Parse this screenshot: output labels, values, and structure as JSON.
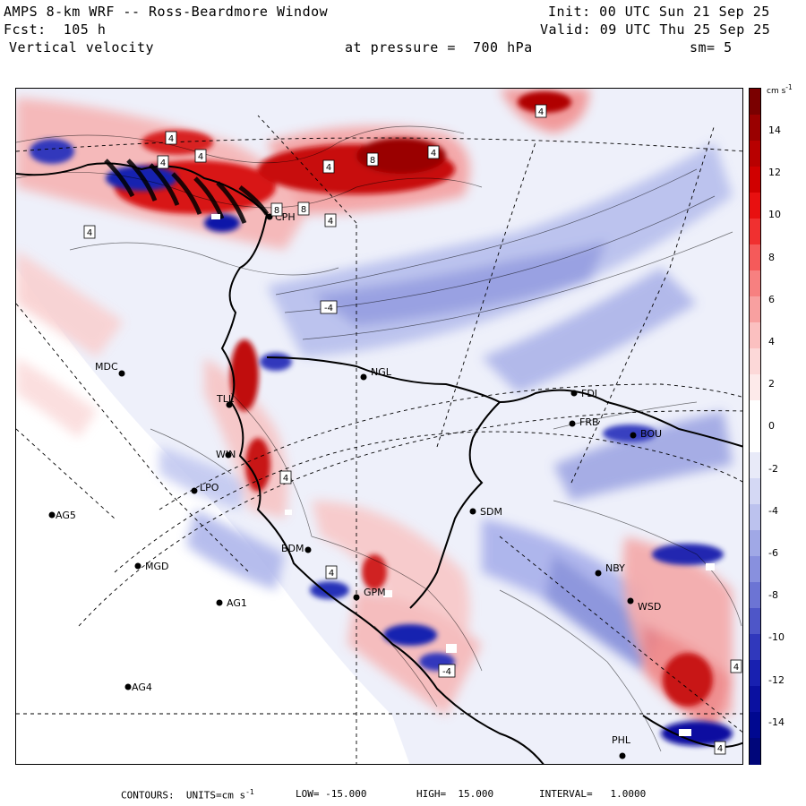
{
  "header": {
    "title": "AMPS 8-km WRF -- Ross-Beardmore Window",
    "init": "Init: 00 UTC Sun 21 Sep 25",
    "fcst": "Fcst:  105 h",
    "valid": "Valid: 09 UTC Thu 25 Sep 25",
    "field": "Vertical velocity",
    "pressure": "at pressure =  700 hPa",
    "smooth": "sm= 5"
  },
  "colorbar": {
    "unit": "cm s",
    "unit_exp": "-1",
    "ticks": [
      "14",
      "12",
      "10",
      "8",
      "6",
      "4",
      "2",
      "0",
      "-2",
      "-4",
      "-6",
      "-8",
      "-10",
      "-12",
      "-14"
    ],
    "colors_top_to_bottom": [
      "#7a0000",
      "#9a0000",
      "#b80000",
      "#d00000",
      "#e81010",
      "#f03030",
      "#f55a5a",
      "#f78080",
      "#f8a0a0",
      "#fbc0c0",
      "#fcd8d8",
      "#fdeaea",
      "#ffffff",
      "#ffffff",
      "#e8eaf8",
      "#d4d8f4",
      "#bcc2ee",
      "#a0a8e6",
      "#8890de",
      "#6c74d4",
      "#4e56c8",
      "#3038bc",
      "#1820b0",
      "#0a10a0",
      "#000890",
      "#00067a"
    ]
  },
  "stations": [
    {
      "code": "CPH"
    },
    {
      "code": "MDC"
    },
    {
      "code": "NGL"
    },
    {
      "code": "FDI"
    },
    {
      "code": "FRB"
    },
    {
      "code": "BOU"
    },
    {
      "code": "TLL"
    },
    {
      "code": "WIN"
    },
    {
      "code": "LPO"
    },
    {
      "code": "AG5"
    },
    {
      "code": "SDM"
    },
    {
      "code": "BDM"
    },
    {
      "code": "MGD"
    },
    {
      "code": "NBY"
    },
    {
      "code": "AG1"
    },
    {
      "code": "GPM"
    },
    {
      "code": "WSD"
    },
    {
      "code": "AG4"
    },
    {
      "code": "PHL"
    }
  ],
  "contour_labels": [
    "4",
    "4",
    "4",
    "4",
    "4",
    "8",
    "4",
    "4",
    "8",
    "8",
    "4",
    "-4",
    "4",
    "4",
    "-4",
    "4",
    "4"
  ],
  "footer": {
    "text": "CONTOURS:  UNITS=cm s",
    "exp": "-1",
    "low": "LOW= -15.000",
    "high": "HIGH=  15.000",
    "interval": "INTERVAL=   1.0000"
  }
}
